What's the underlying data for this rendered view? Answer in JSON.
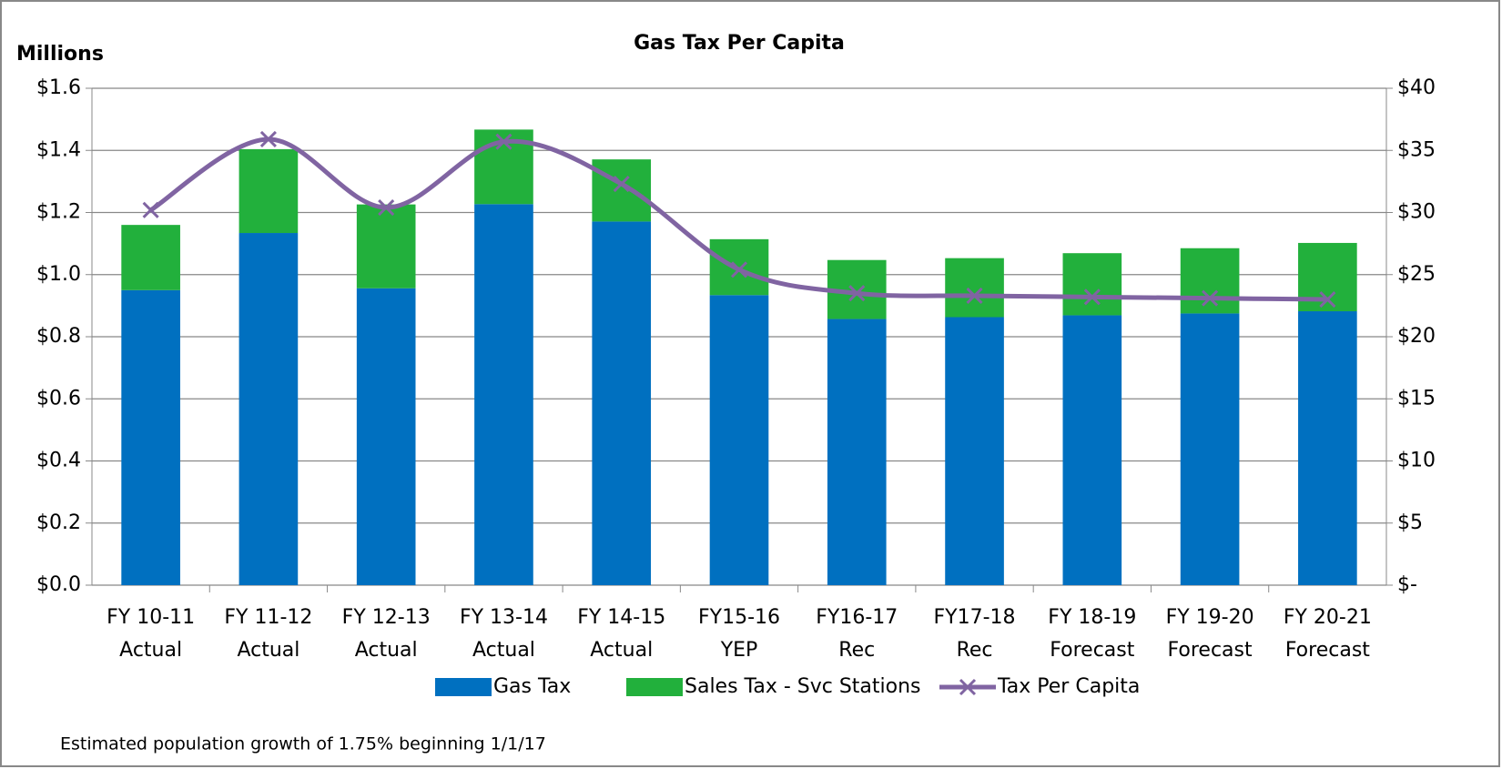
{
  "chart_data": {
    "type": "bar",
    "stacked": true,
    "title": "Gas Tax Per Capita",
    "y_label": "Millions",
    "note": "Estimated population growth of 1.75% beginning 1/1/17",
    "categories": [
      "FY 10-11\nActual",
      "FY 11-12\nActual",
      "FY 12-13\nActual",
      "FY 13-14\nActual",
      "FY 14-15\nActual",
      "FY15-16\nYEP",
      "FY16-17\nRec",
      "FY17-18\nRec",
      "FY 18-19\nForecast",
      "FY 19-20\nForecast",
      "FY 20-21\nForecast"
    ],
    "series": [
      {
        "name": "Gas Tax",
        "type": "bar",
        "color": "#0070c0",
        "values": [
          0.95,
          1.134,
          0.956,
          1.227,
          1.171,
          0.934,
          0.857,
          0.863,
          0.869,
          0.875,
          0.882
        ]
      },
      {
        "name": "Sales Tax - Svc Stations",
        "type": "bar",
        "color": "#22b03c",
        "values": [
          0.21,
          0.27,
          0.27,
          0.24,
          0.2,
          0.18,
          0.19,
          0.19,
          0.2,
          0.21,
          0.22
        ]
      },
      {
        "name": "Tax Per Capita",
        "type": "line",
        "axis": "y2",
        "color": "#8064a2",
        "marker": "x",
        "values": [
          30.2,
          35.9,
          30.4,
          35.7,
          32.3,
          25.4,
          23.5,
          23.3,
          23.2,
          23.1,
          23.0
        ]
      }
    ],
    "ylim": [
      0,
      1.6
    ],
    "yticks": [
      {
        "value": 0,
        "label": "$0.0"
      },
      {
        "value": 0.2,
        "label": "$0.2"
      },
      {
        "value": 0.4,
        "label": "$0.4"
      },
      {
        "value": 0.6,
        "label": "$0.6"
      },
      {
        "value": 0.8,
        "label": "$0.8"
      },
      {
        "value": 1.0,
        "label": "$1.0"
      },
      {
        "value": 1.2,
        "label": "$1.2"
      },
      {
        "value": 1.4,
        "label": "$1.4"
      },
      {
        "value": 1.6,
        "label": "$1.6"
      }
    ],
    "y2lim": [
      0,
      40
    ],
    "y2ticks": [
      {
        "value": 0,
        "label": "$-"
      },
      {
        "value": 5,
        "label": "$5"
      },
      {
        "value": 10,
        "label": "$10"
      },
      {
        "value": 15,
        "label": "$15"
      },
      {
        "value": 20,
        "label": "$20"
      },
      {
        "value": 25,
        "label": "$25"
      },
      {
        "value": 30,
        "label": "$30"
      },
      {
        "value": 35,
        "label": "$35"
      },
      {
        "value": 40,
        "label": "$40"
      }
    ],
    "grid": true,
    "legend": "bottom"
  }
}
